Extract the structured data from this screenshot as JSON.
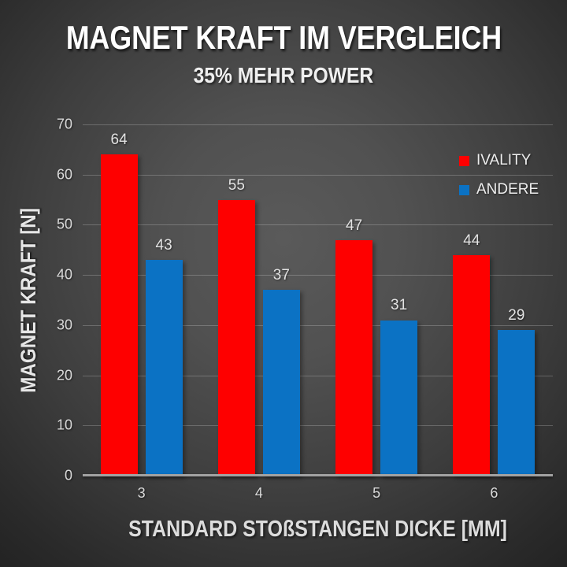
{
  "header": {
    "title": "MAGNET KRAFT IM VERGLEICH",
    "subtitle": "35% MEHR POWER"
  },
  "chart_data": {
    "type": "bar",
    "title": "MAGNET KRAFT IM VERGLEICH",
    "subtitle": "35% MEHR POWER",
    "categories": [
      "3",
      "4",
      "5",
      "6"
    ],
    "series": [
      {
        "name": "IVALITY",
        "color": "#fe0000",
        "values": [
          64,
          55,
          47,
          44
        ]
      },
      {
        "name": "ANDERE",
        "color": "#0b72c4",
        "values": [
          43,
          37,
          31,
          29
        ]
      }
    ],
    "xlabel": "STANDARD STOßSTANGEN DICKE [MM]",
    "ylabel": "MAGNET KRAFT [N]",
    "ylim": [
      0,
      70
    ],
    "yticks": [
      0,
      10,
      20,
      30,
      40,
      50,
      60,
      70
    ],
    "grid": true,
    "legend_position": "top-right",
    "data_labels": true
  },
  "colors": {
    "series_ivality": "#fe0000",
    "series_andere": "#0b72c4",
    "background_center": "#515151",
    "background_edge": "#232323",
    "text": "#ffffff"
  }
}
